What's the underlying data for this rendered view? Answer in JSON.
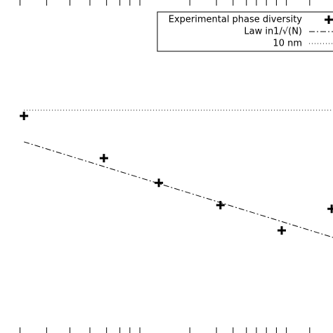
{
  "chart_data": {
    "type": "scatter",
    "xlim": [
      0,
      100
    ],
    "ylim": [
      0,
      100
    ],
    "xticks": [
      6,
      14,
      21,
      27,
      32,
      36,
      39,
      42,
      57,
      65,
      70,
      74,
      77,
      80,
      83,
      86,
      93
    ],
    "series": [
      {
        "name": "Experimental phase diversity",
        "color": "#000000",
        "style": "plus",
        "x": [
          7.2,
          31.2,
          47.7,
          66.2,
          84.6,
          99.6
        ],
        "values": [
          65.2,
          52.5,
          45.1,
          38.4,
          30.8,
          37.3
        ]
      },
      {
        "name": "Law in1/√(N)",
        "color": "#000000",
        "style": "dashdot",
        "x": [
          7.2,
          100
        ],
        "values": [
          57.4,
          28.7
        ]
      },
      {
        "name": "10 nm",
        "color": "#000000",
        "style": "dotted",
        "x": [
          7.2,
          100
        ],
        "values": [
          66.9,
          66.9
        ]
      }
    ]
  }
}
